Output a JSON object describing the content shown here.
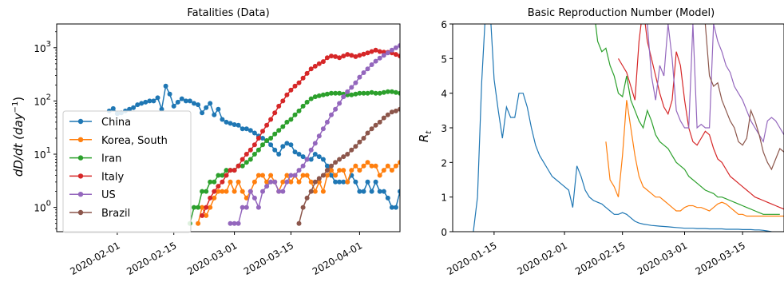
{
  "chart_data": [
    {
      "type": "line",
      "title": "Fatalities (Data)",
      "ylabel_main": "dD/dt (day",
      "ylabel_sup": "−1",
      "ylabel_tail": ")",
      "yscale": "log",
      "ylim": [
        0.35,
        2800
      ],
      "xlim": [
        "2020-01-17",
        "2020-04-11"
      ],
      "x_ticks": [
        "2020-02-01",
        "2020-02-15",
        "2020-03-01",
        "2020-03-15",
        "2020-04-01"
      ],
      "y_ticks": [
        {
          "value": 1,
          "base": "10",
          "exp": "0"
        },
        {
          "value": 10,
          "base": "10",
          "exp": "1"
        },
        {
          "value": 100,
          "base": "10",
          "exp": "2"
        },
        {
          "value": 1000,
          "base": "10",
          "exp": "3"
        }
      ],
      "grid": false,
      "legend_position": "lower-left",
      "series": [
        {
          "name": "China",
          "color": "#1f77b4",
          "start": "2020-01-30",
          "values": [
            65,
            72,
            58,
            60,
            65,
            70,
            75,
            85,
            90,
            95,
            100,
            100,
            115,
            70,
            190,
            135,
            80,
            95,
            110,
            100,
            100,
            90,
            85,
            60,
            75,
            90,
            55,
            70,
            45,
            40,
            38,
            36,
            35,
            30,
            30,
            28,
            25,
            22,
            20,
            18,
            15,
            12,
            10,
            14,
            16,
            15,
            11,
            10,
            9,
            8,
            8,
            10,
            9,
            8,
            6,
            4,
            3,
            3,
            3,
            3,
            4,
            3,
            2,
            2,
            3,
            2,
            3,
            2,
            2,
            1.5,
            1,
            1,
            2,
            2
          ]
        },
        {
          "name": "Korea, South",
          "color": "#ff7f0e",
          "start": "2020-02-21",
          "values": [
            0.5,
            1,
            0.7,
            1,
            1.5,
            2,
            2,
            2,
            3,
            2,
            3,
            2,
            1.5,
            2,
            3,
            4,
            4,
            3,
            4,
            3,
            2,
            3,
            4,
            3,
            4,
            3,
            4,
            4,
            3,
            2,
            3,
            2,
            4,
            5,
            4,
            5,
            5,
            3,
            5,
            6,
            5,
            6,
            7,
            6,
            6,
            4,
            5,
            6,
            5,
            6,
            7,
            5,
            4
          ]
        },
        {
          "name": "Iran",
          "color": "#2ca02c",
          "start": "2020-02-19",
          "values": [
            0.5,
            1,
            1,
            2,
            2,
            3,
            3,
            4,
            4,
            5,
            5,
            5,
            6,
            6,
            7,
            8,
            10,
            12,
            15,
            18,
            20,
            24,
            28,
            33,
            40,
            45,
            55,
            65,
            80,
            95,
            110,
            120,
            125,
            130,
            135,
            140,
            140,
            140,
            135,
            130,
            130,
            135,
            140,
            140,
            140,
            145,
            140,
            140,
            145,
            150,
            150,
            145,
            140,
            135,
            130
          ]
        },
        {
          "name": "Italy",
          "color": "#d62728",
          "start": "2020-02-22",
          "values": [
            0.7,
            1,
            1.5,
            2,
            2.5,
            3,
            4,
            5,
            5,
            6,
            8,
            10,
            12,
            15,
            20,
            27,
            35,
            45,
            60,
            80,
            100,
            130,
            160,
            190,
            220,
            270,
            330,
            400,
            450,
            500,
            550,
            650,
            700,
            680,
            650,
            700,
            750,
            720,
            680,
            720,
            760,
            800,
            850,
            900,
            850,
            830,
            820,
            800,
            750,
            700,
            650,
            600,
            600,
            580,
            600
          ]
        },
        {
          "name": "US",
          "color": "#9467bd",
          "start": "2020-02-29",
          "values": [
            0.5,
            0.5,
            0.5,
            1,
            1,
            2,
            1.5,
            1,
            2,
            2.5,
            3,
            3,
            2,
            2,
            3,
            4,
            4,
            5,
            6,
            8,
            12,
            16,
            22,
            30,
            40,
            55,
            70,
            90,
            120,
            150,
            180,
            220,
            280,
            340,
            400,
            480,
            560,
            640,
            720,
            800,
            900,
            1000,
            1100,
            1200,
            1300,
            1450,
            1600,
            1750,
            1850
          ]
        },
        {
          "name": "Brazil",
          "color": "#8c564b",
          "start": "2020-03-17",
          "values": [
            0.5,
            1,
            1.5,
            2,
            3,
            3.5,
            4,
            5,
            6,
            7,
            8,
            9,
            10,
            12,
            14,
            17,
            20,
            25,
            30,
            35,
            40,
            48,
            55,
            62,
            65,
            70,
            75,
            85,
            100,
            115,
            125,
            125
          ]
        }
      ]
    },
    {
      "type": "line",
      "title": "Basic Reproduction Number (Model)",
      "ylabel_main": "R",
      "ylabel_sub": "t",
      "ylim": [
        0,
        6
      ],
      "xlim": [
        "2020-01-05",
        "2020-03-25"
      ],
      "x_ticks": [
        "2020-01-15",
        "2020-02-01",
        "2020-02-15",
        "2020-03-01",
        "2020-03-15"
      ],
      "y_ticks": [
        0,
        1,
        2,
        3,
        4,
        5,
        6
      ],
      "grid": false,
      "series": [
        {
          "name": "China",
          "color": "#1f77b4",
          "start": "2020-01-10",
          "values": [
            0,
            1,
            4.3,
            6.5,
            6.5,
            4.4,
            3.5,
            2.7,
            3.6,
            3.3,
            3.3,
            4.0,
            4.0,
            3.6,
            3.0,
            2.5,
            2.2,
            2.0,
            1.8,
            1.6,
            1.5,
            1.4,
            1.3,
            1.2,
            0.7,
            1.9,
            1.6,
            1.2,
            1.0,
            0.9,
            0.85,
            0.8,
            0.7,
            0.6,
            0.5,
            0.5,
            0.55,
            0.5,
            0.4,
            0.3,
            0.25,
            0.22,
            0.2,
            0.18,
            0.17,
            0.16,
            0.15,
            0.14,
            0.13,
            0.12,
            0.11,
            0.1,
            0.1,
            0.1,
            0.09,
            0.09,
            0.09,
            0.08,
            0.08,
            0.08,
            0.08,
            0.07,
            0.07,
            0.07,
            0.07,
            0.06,
            0.06,
            0.06,
            0.05,
            0.05,
            0.04,
            0.02,
            0.0
          ]
        },
        {
          "name": "Korea, South",
          "color": "#ff7f0e",
          "start": "2020-02-11",
          "values": [
            2.6,
            1.5,
            1.3,
            1.0,
            2.2,
            3.8,
            3.0,
            2.2,
            1.6,
            1.3,
            1.2,
            1.1,
            1.0,
            1.0,
            0.9,
            0.8,
            0.7,
            0.6,
            0.6,
            0.7,
            0.75,
            0.75,
            0.7,
            0.7,
            0.65,
            0.6,
            0.7,
            0.8,
            0.85,
            0.8,
            0.7,
            0.6,
            0.5,
            0.5,
            0.45,
            0.45,
            0.45,
            0.45,
            0.45,
            0.45,
            0.45,
            0.45,
            0.45,
            0.45,
            0.45
          ]
        },
        {
          "name": "Iran",
          "color": "#2ca02c",
          "start": "2020-02-08",
          "values": [
            6.5,
            5.5,
            5.2,
            5.3,
            4.8,
            4.5,
            4.0,
            3.9,
            4.5,
            3.8,
            3.5,
            3.2,
            3.0,
            3.5,
            3.2,
            2.8,
            2.6,
            2.5,
            2.4,
            2.2,
            2.0,
            1.9,
            1.8,
            1.6,
            1.5,
            1.4,
            1.3,
            1.2,
            1.15,
            1.1,
            1.0,
            1.0,
            0.95,
            0.9,
            0.85,
            0.8,
            0.75,
            0.7,
            0.65,
            0.6,
            0.55,
            0.5,
            0.5,
            0.5,
            0.5,
            0.5
          ]
        },
        {
          "name": "Italy",
          "color": "#d62728",
          "start": "2020-02-14",
          "values": [
            5.0,
            4.8,
            4.6,
            4.2,
            3.8,
            5.5,
            6.5,
            5.5,
            5.0,
            4.5,
            4.0,
            3.6,
            3.4,
            3.8,
            5.2,
            4.8,
            3.8,
            3.0,
            2.6,
            2.5,
            2.7,
            2.9,
            2.8,
            2.4,
            2.1,
            2.0,
            1.8,
            1.6,
            1.5,
            1.4,
            1.3,
            1.2,
            1.1,
            1.0,
            0.95,
            0.9,
            0.85,
            0.8,
            0.75,
            0.7,
            0.65,
            0.6,
            0.55,
            0.5
          ]
        },
        {
          "name": "US",
          "color": "#9467bd",
          "start": "2020-02-21",
          "values": [
            6.0,
            4.5,
            3.8,
            4.8,
            4.5,
            6.0,
            5.0,
            3.5,
            3.2,
            3.0,
            3.0,
            6.0,
            3.0,
            3.1,
            3.0,
            3.0,
            6.0,
            5.5,
            5.2,
            4.8,
            4.6,
            4.2,
            4.0,
            3.8,
            3.5,
            3.2,
            3.0,
            2.8,
            2.6,
            3.2,
            3.3,
            3.2,
            3.0,
            2.8,
            2.5,
            2.3,
            2.0,
            1.7,
            1.9,
            2.0,
            1.9,
            1.9
          ]
        },
        {
          "name": "Brazil",
          "color": "#8c564b",
          "start": "2020-03-06",
          "values": [
            6.0,
            4.5,
            4.2,
            4.3,
            3.8,
            3.5,
            3.2,
            3.0,
            2.6,
            2.5,
            2.7,
            3.5,
            3.2,
            2.8,
            2.3,
            2.0,
            1.8,
            2.1,
            2.4,
            2.3
          ]
        }
      ]
    }
  ]
}
